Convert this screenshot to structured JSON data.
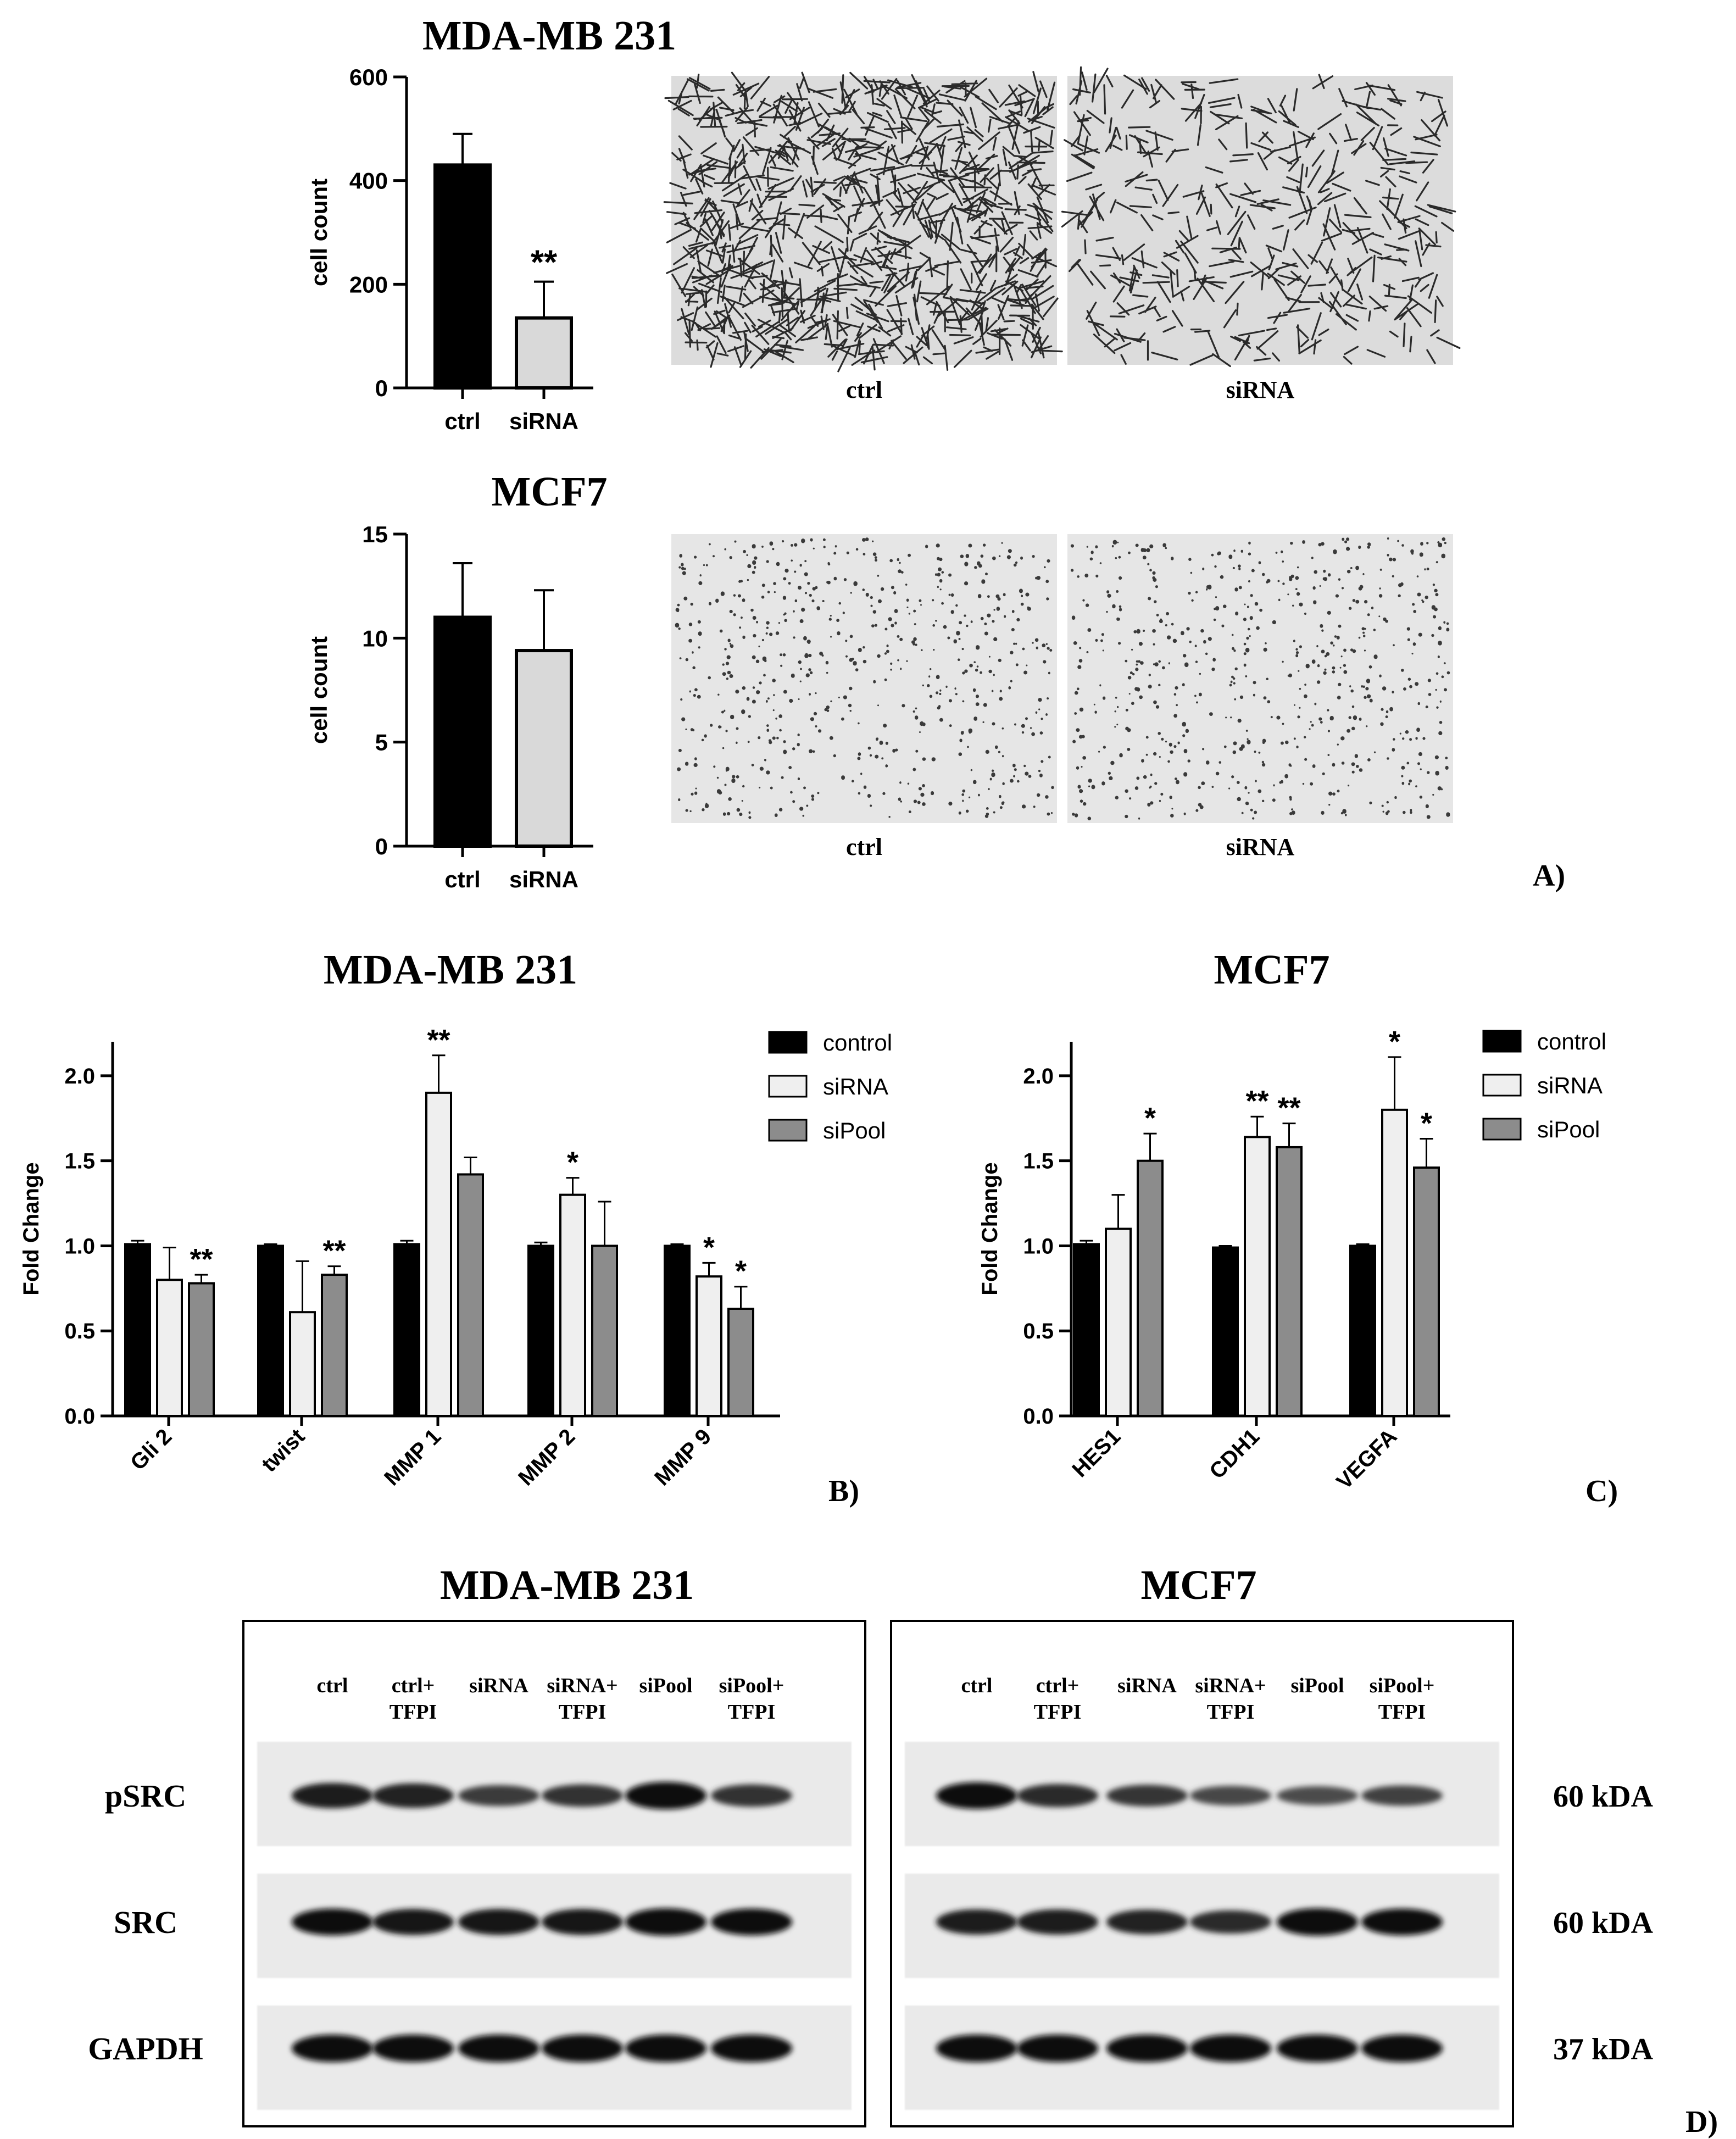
{
  "panel_letters": {
    "a": "A)",
    "b": "B)",
    "c": "C)",
    "d": "D)"
  },
  "chart_data": [
    {
      "id": "a1",
      "type": "bar",
      "title": "MDA-MB 231",
      "xlabel": "",
      "ylabel": "cell count",
      "ylim": [
        0,
        600
      ],
      "yticks": [
        0,
        200,
        400,
        600
      ],
      "categories": [
        "ctrl",
        "siRNA"
      ],
      "values": [
        430,
        135
      ],
      "errors": [
        60,
        70
      ],
      "significance": [
        "",
        "**"
      ],
      "colors": [
        "#000000",
        "#d9d9d9"
      ]
    },
    {
      "id": "a2",
      "type": "bar",
      "title": "MCF7",
      "xlabel": "",
      "ylabel": "cell count",
      "ylim": [
        0,
        15
      ],
      "yticks": [
        0,
        5,
        10,
        15
      ],
      "categories": [
        "ctrl",
        "siRNA"
      ],
      "values": [
        11.0,
        9.4
      ],
      "errors": [
        2.6,
        2.9
      ],
      "significance": [
        "",
        ""
      ],
      "colors": [
        "#000000",
        "#d9d9d9"
      ]
    },
    {
      "id": "b",
      "type": "bar",
      "title": "MDA-MB 231",
      "xlabel": "",
      "ylabel": "Fold Change",
      "ylim": [
        0,
        2.2
      ],
      "yticks": [
        0.0,
        0.5,
        1.0,
        1.5,
        2.0
      ],
      "ytick_labels": [
        "0.0",
        "0.5",
        "1.0",
        "1.5",
        "2.0"
      ],
      "categories": [
        "Gli 2",
        "twist",
        "MMP 1",
        "MMP 2",
        "MMP 9"
      ],
      "legend_position": "top-right",
      "series": [
        {
          "name": "control",
          "color": "#000000",
          "values": [
            1.01,
            1.0,
            1.01,
            1.0,
            1.0
          ],
          "errors": [
            0.02,
            0.01,
            0.02,
            0.02,
            0.01
          ],
          "significance": [
            "",
            "",
            "",
            "",
            ""
          ]
        },
        {
          "name": "siRNA",
          "color": "#efefef",
          "values": [
            0.8,
            0.61,
            1.9,
            1.3,
            0.82
          ],
          "errors": [
            0.19,
            0.3,
            0.22,
            0.1,
            0.08
          ],
          "significance": [
            "",
            "",
            "**",
            "*",
            "*"
          ]
        },
        {
          "name": "siPool",
          "color": "#8c8c8c",
          "values": [
            0.78,
            0.83,
            1.42,
            1.0,
            0.63
          ],
          "errors": [
            0.05,
            0.05,
            0.1,
            0.26,
            0.13
          ],
          "significance": [
            "**",
            "**",
            "",
            "",
            "*"
          ]
        }
      ]
    },
    {
      "id": "c",
      "type": "bar",
      "title": "MCF7",
      "xlabel": "",
      "ylabel": "Fold Change",
      "ylim": [
        0,
        2.2
      ],
      "yticks": [
        0.0,
        0.5,
        1.0,
        1.5,
        2.0
      ],
      "ytick_labels": [
        "0.0",
        "0.5",
        "1.0",
        "1.5",
        "2.0"
      ],
      "categories": [
        "HES1",
        "CDH1",
        "VEGFA"
      ],
      "legend_position": "top-right",
      "series": [
        {
          "name": "control",
          "color": "#000000",
          "values": [
            1.01,
            0.99,
            1.0
          ],
          "errors": [
            0.02,
            0.01,
            0.01
          ],
          "significance": [
            "",
            "",
            ""
          ]
        },
        {
          "name": "siRNA",
          "color": "#efefef",
          "values": [
            1.1,
            1.64,
            1.8
          ],
          "errors": [
            0.2,
            0.12,
            0.31
          ],
          "significance": [
            "",
            "**",
            "*"
          ]
        },
        {
          "name": "siPool",
          "color": "#8c8c8c",
          "values": [
            1.5,
            1.58,
            1.46
          ],
          "errors": [
            0.16,
            0.14,
            0.17
          ],
          "significance": [
            "*",
            "**",
            "*"
          ]
        }
      ]
    }
  ],
  "micrographs": [
    {
      "label": "ctrl",
      "cell_line": "MDA-MB 231"
    },
    {
      "label": "siRNA",
      "cell_line": "MDA-MB 231"
    },
    {
      "label": "ctrl",
      "cell_line": "MCF7"
    },
    {
      "label": "siRNA",
      "cell_line": "MCF7"
    }
  ],
  "western": {
    "blots": [
      {
        "title": "MDA-MB 231",
        "lanes": [
          "ctrl",
          "ctrl+\nTFPI",
          "siRNA",
          "siRNA+\nTFPI",
          "siPool",
          "siPool+\nTFPI"
        ]
      },
      {
        "title": "MCF7",
        "lanes": [
          "ctrl",
          "ctrl+\nTFPI",
          "siRNA",
          "siRNA+\nTFPI",
          "siPool",
          "siPool+\nTFPI"
        ]
      }
    ],
    "rows": [
      {
        "protein": "pSRC",
        "size": "60 kDA"
      },
      {
        "protein": "SRC",
        "size": "60 kDA"
      },
      {
        "protein": "GAPDH",
        "size": "37 kDA"
      }
    ],
    "band_intensity": [
      [
        [
          0.85,
          0.8,
          0.55,
          0.65,
          1.0,
          0.65
        ],
        [
          0.95,
          0.7,
          0.6,
          0.45,
          0.4,
          0.5
        ]
      ],
      [
        [
          0.95,
          0.9,
          0.9,
          0.9,
          1.0,
          0.95
        ],
        [
          0.85,
          0.85,
          0.8,
          0.7,
          1.0,
          0.95
        ]
      ],
      [
        [
          1.0,
          1.0,
          1.0,
          1.0,
          1.0,
          1.0
        ],
        [
          1.0,
          1.0,
          1.0,
          1.0,
          1.0,
          1.0
        ]
      ]
    ]
  }
}
